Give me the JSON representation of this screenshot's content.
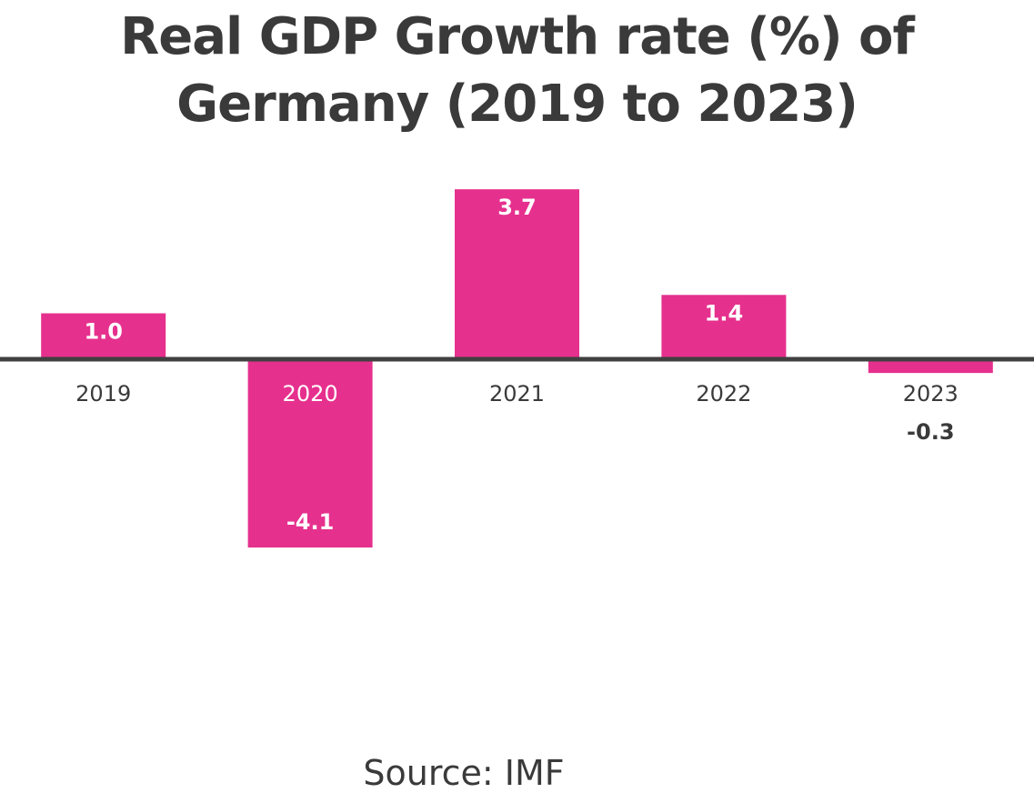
{
  "chart_data": {
    "type": "bar",
    "title": "Real GDP Growth rate (%) of Germany (2019 to 2023)",
    "title_lines": [
      "Real GDP Growth rate (%) of",
      "Germany (2019 to 2023)"
    ],
    "categories": [
      "2019",
      "2020",
      "2021",
      "2022",
      "2023"
    ],
    "values": [
      1.0,
      -4.1,
      3.7,
      1.4,
      -0.3
    ],
    "data_labels": [
      "1.0",
      "-4.1",
      "3.7",
      "1.4",
      "-0.3"
    ],
    "xlabel": "",
    "ylabel": "",
    "ylim": [
      -4.1,
      3.7
    ],
    "grid": false,
    "legend": "none",
    "bar_color": "#e6308e",
    "axis_color": "#404040",
    "text_color": "#3a3a3a",
    "source": "Source: IMF"
  }
}
